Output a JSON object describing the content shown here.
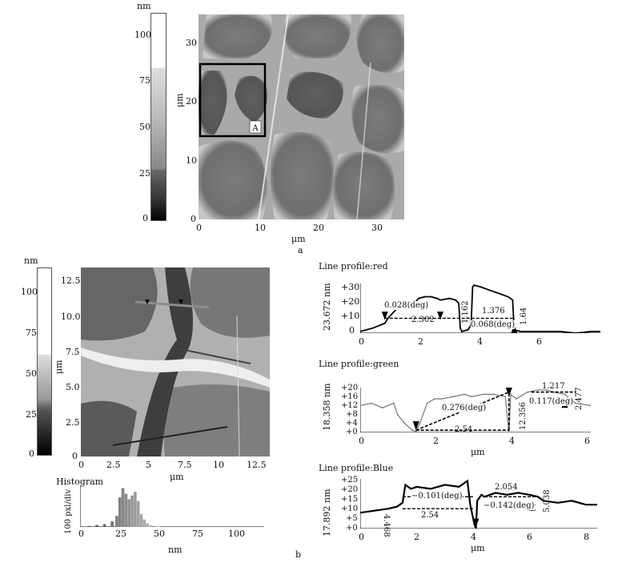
{
  "panel_a": {
    "panel_label": "a",
    "colorbar": {
      "unit": "nm",
      "ticks": [
        "100",
        "75",
        "50",
        "25",
        "0"
      ]
    },
    "image": {
      "xlabel": "μm",
      "ylabel": "μm",
      "xticks": [
        "0",
        "10",
        "20",
        "30"
      ],
      "yticks": [
        "30",
        "20",
        "10",
        "0"
      ],
      "region_label": "A"
    }
  },
  "panel_b": {
    "panel_label": "b",
    "colorbar": {
      "unit": "nm",
      "ticks": [
        "100",
        "75",
        "50",
        "25",
        "0"
      ]
    },
    "image": {
      "xlabel": "μm",
      "ylabel": "μm",
      "xticks": [
        "0",
        "2.5",
        "5",
        "7.5",
        "10",
        "12.5"
      ],
      "yticks": [
        "12.5",
        "10.0",
        "7.5",
        "5.0",
        "2.5",
        "0"
      ]
    },
    "histogram": {
      "title": "Histogram",
      "ylabel": "100 pxl/div",
      "xlabel": "nm",
      "xticks": [
        "0",
        "25",
        "50",
        "75",
        "100"
      ]
    },
    "profiles": [
      {
        "title": "Line profile:red",
        "ylabel": "23.672 nm",
        "xlabel": "",
        "yticks": [
          "+30",
          "+20",
          "+10",
          "0"
        ],
        "xticks": [
          "0",
          "2",
          "4",
          "6"
        ],
        "annotations": [
          "0.028(deg)",
          "2.302",
          "1.162",
          "1.376",
          "0.068(deg)",
          "1.64"
        ]
      },
      {
        "title": "Line profile:green",
        "ylabel": "18.358 nm",
        "xlabel": "μm",
        "yticks": [
          "+20",
          "+16",
          "+12",
          "+8",
          "+4",
          "+0"
        ],
        "xticks": [
          "0",
          "2",
          "4",
          "6"
        ],
        "annotations": [
          "0.276(deg)",
          "2.54",
          "12.356",
          "1.217",
          "0.117(deg)",
          "2.477"
        ]
      },
      {
        "title": "Line profile:Blue",
        "ylabel": "17.892 nm",
        "xlabel": "μm",
        "yticks": [
          "+25",
          "+20",
          "+15",
          "+10",
          "+5",
          "+0"
        ],
        "xticks": [
          "0",
          "2",
          "4",
          "6",
          "8"
        ],
        "annotations": [
          "4.468",
          "−0.101(deg)",
          "2.54",
          "2.054",
          "−0.142(deg)",
          "5.038"
        ]
      }
    ]
  },
  "chart_data": [
    {
      "type": "line",
      "title": "Line profile:red",
      "ylabel": "23.672 nm",
      "xlim": [
        0,
        7.8
      ],
      "ylim": [
        0,
        30
      ],
      "series": [
        {
          "x": [
            0,
            0.4,
            0.8,
            0.9,
            1.2,
            1.5,
            1.8,
            1.9,
            2.1,
            2.3,
            2.5,
            2.6,
            2.9,
            3.1,
            3.2,
            3.25,
            3.3,
            3.5,
            3.6,
            3.65,
            3.7,
            3.9,
            4.2,
            4.5,
            4.8,
            4.95,
            5.0,
            5.2,
            5.5,
            6.0,
            6.5,
            7.0,
            7.5,
            7.8
          ],
          "y": [
            1,
            3,
            6,
            9,
            15,
            18,
            19,
            21,
            22,
            22,
            21,
            20,
            21,
            20,
            18,
            3,
            1,
            2,
            5,
            28,
            29,
            28,
            26,
            24,
            22,
            20,
            2,
            1,
            1,
            1,
            1,
            0,
            1,
            1
          ]
        }
      ]
    },
    {
      "type": "line",
      "title": "Line profile:green",
      "ylabel": "18.358 nm",
      "xlabel": "μm",
      "xlim": [
        0,
        6.2
      ],
      "ylim": [
        0,
        20
      ],
      "series": [
        {
          "x": [
            0,
            0.3,
            0.6,
            0.9,
            1.0,
            1.2,
            1.4,
            1.5,
            1.6,
            1.8,
            2.0,
            2.2,
            2.5,
            2.8,
            3.0,
            3.3,
            3.6,
            3.9,
            4.0,
            4.05,
            4.2,
            4.5,
            4.8,
            5.0,
            5.2,
            5.5,
            5.8,
            6.2
          ],
          "y": [
            12,
            13,
            11,
            13,
            8,
            4,
            1,
            0.5,
            4,
            13,
            15,
            15,
            16,
            17,
            16,
            17,
            17,
            16,
            0,
            17,
            15,
            18,
            19,
            19,
            18,
            17,
            13,
            12
          ]
        }
      ]
    },
    {
      "type": "line",
      "title": "Line profile:Blue",
      "ylabel": "17.892 nm",
      "xlabel": "μm",
      "xlim": [
        0,
        8.4
      ],
      "ylim": [
        0,
        25
      ],
      "series": [
        {
          "x": [
            0,
            0.5,
            1.0,
            1.3,
            1.5,
            1.6,
            1.8,
            2.0,
            2.5,
            3.0,
            3.5,
            3.8,
            3.9,
            4.05,
            4.1,
            4.15,
            4.3,
            4.4,
            4.8,
            5.2,
            5.6,
            6.0,
            6.3,
            6.5,
            7.0,
            7.5,
            8.0,
            8.4
          ],
          "y": [
            8,
            9,
            10,
            11,
            13,
            22,
            20,
            21,
            20,
            22,
            21,
            24,
            12,
            2,
            0,
            14,
            17,
            16,
            18,
            17,
            18,
            17,
            16,
            14,
            13,
            14,
            12,
            12
          ]
        }
      ]
    },
    {
      "type": "bar",
      "title": "Histogram",
      "ylabel": "100 pxl/div",
      "xlabel": "nm",
      "xlim": [
        0,
        120
      ],
      "categories": [
        0,
        5,
        10,
        15,
        20,
        23,
        25,
        27,
        29,
        31,
        33,
        35,
        37,
        39,
        41,
        43,
        45,
        50,
        55
      ],
      "values": [
        0,
        1,
        2,
        3,
        6,
        12,
        32,
        42,
        36,
        30,
        34,
        38,
        28,
        14,
        8,
        4,
        2,
        1,
        0
      ]
    }
  ]
}
